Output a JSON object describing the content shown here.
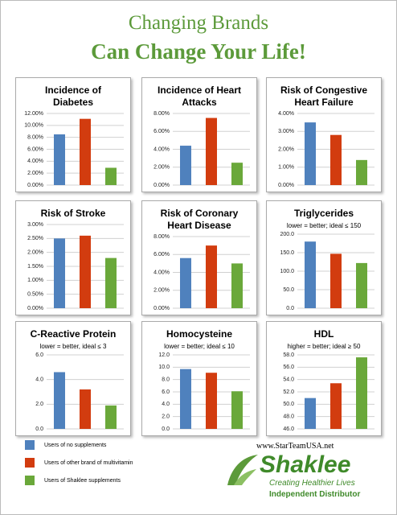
{
  "title": "Changing Brands",
  "subtitle": "Can Change Your Life!",
  "legend": [
    {
      "name": "Users of no supplements",
      "color": "#4f81bd"
    },
    {
      "name": "Users of other brand of multivitamin",
      "color": "#d23c0f"
    },
    {
      "name": "Users of Shaklee supplements",
      "color": "#6aa83a"
    }
  ],
  "footer": {
    "url": "www.StarTeamUSA.net",
    "brand": "Shaklee",
    "tagline": "Creating Healthier Lives",
    "role": "Independent Distributor"
  },
  "chart_data": [
    {
      "type": "bar",
      "title": "Incidence of Diabetes",
      "values": [
        8.5,
        11.1,
        2.9
      ],
      "ylim": [
        0,
        12
      ],
      "grid": true,
      "yticks": [
        {
          "value": 0,
          "label": "0.00%"
        },
        {
          "value": 2,
          "label": "2.00%"
        },
        {
          "value": 4,
          "label": "4.00%"
        },
        {
          "value": 6,
          "label": "6.00%"
        },
        {
          "value": 8,
          "label": "8.00%"
        },
        {
          "value": 10,
          "label": "10.00%"
        },
        {
          "value": 12,
          "label": "12.00%"
        }
      ]
    },
    {
      "type": "bar",
      "title": "Incidence of Heart Attacks",
      "values": [
        4.4,
        7.5,
        2.5
      ],
      "ylim": [
        0,
        8
      ],
      "grid": true,
      "yticks": [
        {
          "value": 0,
          "label": "0.00%"
        },
        {
          "value": 2,
          "label": "2.00%"
        },
        {
          "value": 4,
          "label": "4.00%"
        },
        {
          "value": 6,
          "label": "6.00%"
        },
        {
          "value": 8,
          "label": "8.00%"
        }
      ]
    },
    {
      "type": "bar",
      "title": "Risk of Congestive Heart Failure",
      "values": [
        3.5,
        2.8,
        1.4
      ],
      "ylim": [
        0,
        4
      ],
      "grid": true,
      "yticks": [
        {
          "value": 0,
          "label": "0.00%"
        },
        {
          "value": 1,
          "label": "1.00%"
        },
        {
          "value": 2,
          "label": "2.00%"
        },
        {
          "value": 3,
          "label": "3.00%"
        },
        {
          "value": 4,
          "label": "4.00%"
        }
      ]
    },
    {
      "type": "bar",
      "title": "Risk of Stroke",
      "values": [
        2.5,
        2.6,
        1.8
      ],
      "ylim": [
        0,
        3
      ],
      "grid": true,
      "yticks": [
        {
          "value": 0,
          "label": "0.00%"
        },
        {
          "value": 0.5,
          "label": "0.50%"
        },
        {
          "value": 1,
          "label": "1.00%"
        },
        {
          "value": 1.5,
          "label": "1.50%"
        },
        {
          "value": 2,
          "label": "2.00%"
        },
        {
          "value": 2.5,
          "label": "2.50%"
        },
        {
          "value": 3,
          "label": "3.00%"
        }
      ]
    },
    {
      "type": "bar",
      "title": "Risk of Coronary Heart Disease",
      "values": [
        5.6,
        7.0,
        5.0
      ],
      "ylim": [
        0,
        8
      ],
      "grid": true,
      "yticks": [
        {
          "value": 0,
          "label": "0.00%"
        },
        {
          "value": 2,
          "label": "2.00%"
        },
        {
          "value": 4,
          "label": "4.00%"
        },
        {
          "value": 6,
          "label": "6.00%"
        },
        {
          "value": 8,
          "label": "8.00%"
        }
      ]
    },
    {
      "type": "bar",
      "title": "Triglycerides",
      "subtitle": "lower = better; ideal ≤ 150",
      "values": [
        180,
        147,
        122
      ],
      "ylim": [
        0,
        200
      ],
      "grid": true,
      "yticks": [
        {
          "value": 0,
          "label": "0.0"
        },
        {
          "value": 50,
          "label": "50.0"
        },
        {
          "value": 100,
          "label": "100.0"
        },
        {
          "value": 150,
          "label": "150.0"
        },
        {
          "value": 200,
          "label": "200.0"
        }
      ]
    },
    {
      "type": "bar",
      "title": "C-Reactive Protein",
      "subtitle": "lower = better, ideal  ≤ 3",
      "values": [
        4.6,
        3.2,
        1.9
      ],
      "ylim": [
        0,
        6
      ],
      "grid": true,
      "yticks": [
        {
          "value": 0,
          "label": "0.0"
        },
        {
          "value": 2,
          "label": "2.0"
        },
        {
          "value": 4,
          "label": "4.0"
        },
        {
          "value": 6,
          "label": "6.0"
        }
      ]
    },
    {
      "type": "bar",
      "title": "Homocysteine",
      "subtitle": "lower = better; ideal ≤ 10",
      "values": [
        9.7,
        9.1,
        6.1
      ],
      "ylim": [
        0,
        12
      ],
      "grid": true,
      "yticks": [
        {
          "value": 0,
          "label": "0.0"
        },
        {
          "value": 2,
          "label": "2.0"
        },
        {
          "value": 4,
          "label": "4.0"
        },
        {
          "value": 6,
          "label": "6.0"
        },
        {
          "value": 8,
          "label": "8.0"
        },
        {
          "value": 10,
          "label": "10.0"
        },
        {
          "value": 12,
          "label": "12.0"
        }
      ]
    },
    {
      "type": "bar",
      "title": "HDL",
      "subtitle": "higher = better; ideal ≥ 50",
      "values": [
        51.0,
        53.4,
        57.6
      ],
      "ylim": [
        46,
        58
      ],
      "grid": true,
      "yticks": [
        {
          "value": 46,
          "label": "46.0"
        },
        {
          "value": 48,
          "label": "48.0"
        },
        {
          "value": 50,
          "label": "50.0"
        },
        {
          "value": 52,
          "label": "52.0"
        },
        {
          "value": 54,
          "label": "54.0"
        },
        {
          "value": 56,
          "label": "56.0"
        },
        {
          "value": 58,
          "label": "58.0"
        }
      ]
    }
  ]
}
